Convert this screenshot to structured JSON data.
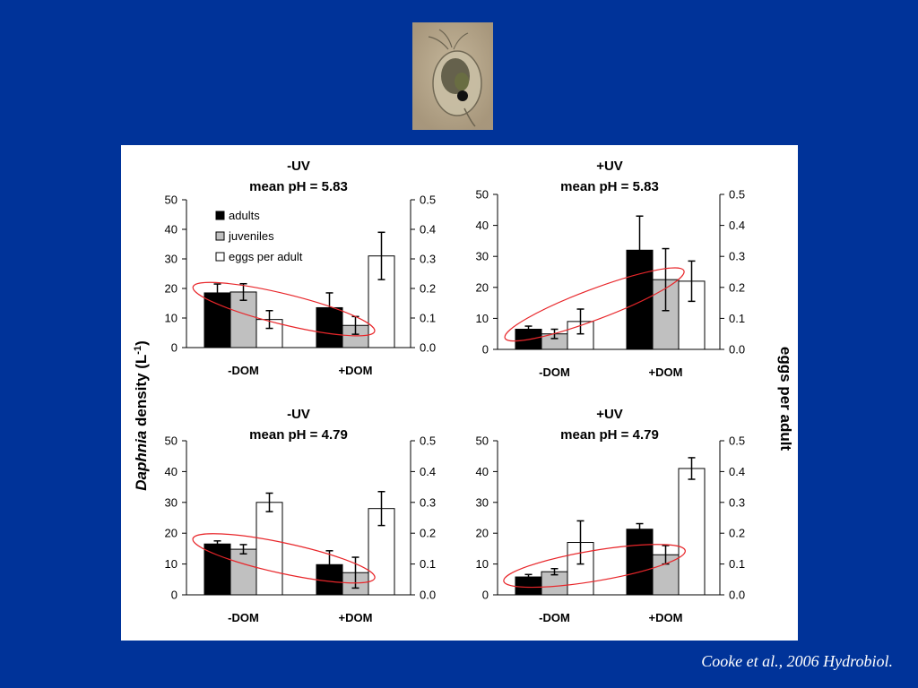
{
  "citation": "Cooke et al., 2006 Hydrobiol.",
  "photo": {
    "subject": "daphnia-photo"
  },
  "colors": {
    "background": "#003399",
    "adults": "#000000",
    "juveniles": "#c0c0c0",
    "eggs": "#ffffff",
    "highlight_ellipse": "#e8262a"
  },
  "shared_axes": {
    "ylabel_italic": "Daphnia",
    "ylabel_rest": " density (L",
    "ylabel_sup": "-1",
    "ylabel_close": ")",
    "y2label": "eggs per adult"
  },
  "chart_data": [
    {
      "type": "bar",
      "title": "-UV",
      "subtitle": "mean pH = 5.83",
      "categories": [
        "-DOM",
        "+DOM"
      ],
      "ylim": [
        0,
        50
      ],
      "y2lim": [
        0,
        0.5
      ],
      "yticks": [
        "0",
        "10",
        "20",
        "30",
        "40",
        "50"
      ],
      "y2ticks": [
        "0.0",
        "0.1",
        "0.2",
        "0.3",
        "0.4",
        "0.5"
      ],
      "legend": [
        "adults",
        "juveniles",
        "eggs per adult"
      ],
      "series": [
        {
          "name": "adults",
          "axis": "left",
          "values": [
            18.5,
            13.5
          ],
          "errors": [
            3,
            5
          ]
        },
        {
          "name": "juveniles",
          "axis": "left",
          "values": [
            18.8,
            7.5
          ],
          "errors": [
            2.8,
            3
          ]
        },
        {
          "name": "eggs per adult",
          "axis": "right",
          "values": [
            0.095,
            0.31
          ],
          "errors": [
            0.03,
            0.08
          ]
        }
      ],
      "highlight": "decreasing"
    },
    {
      "type": "bar",
      "title": "+UV",
      "subtitle": "mean pH = 5.83",
      "categories": [
        "-DOM",
        "+DOM"
      ],
      "ylim": [
        0,
        50
      ],
      "y2lim": [
        0,
        0.5
      ],
      "yticks": [
        "0",
        "10",
        "20",
        "30",
        "40",
        "50"
      ],
      "y2ticks": [
        "0.0",
        "0.1",
        "0.2",
        "0.3",
        "0.4",
        "0.5"
      ],
      "series": [
        {
          "name": "adults",
          "axis": "left",
          "values": [
            6.5,
            32
          ],
          "errors": [
            1,
            11
          ]
        },
        {
          "name": "juveniles",
          "axis": "left",
          "values": [
            5,
            22.5
          ],
          "errors": [
            1.5,
            10
          ]
        },
        {
          "name": "eggs per adult",
          "axis": "right",
          "values": [
            0.09,
            0.22
          ],
          "errors": [
            0.04,
            0.065
          ]
        }
      ],
      "highlight": "increasing"
    },
    {
      "type": "bar",
      "title": "-UV",
      "subtitle": "mean pH = 4.79",
      "categories": [
        "-DOM",
        "+DOM"
      ],
      "ylim": [
        0,
        50
      ],
      "y2lim": [
        0,
        0.5
      ],
      "yticks": [
        "0",
        "10",
        "20",
        "30",
        "40",
        "50"
      ],
      "y2ticks": [
        "0.0",
        "0.1",
        "0.2",
        "0.3",
        "0.4",
        "0.5"
      ],
      "series": [
        {
          "name": "adults",
          "axis": "left",
          "values": [
            16.5,
            9.8
          ],
          "errors": [
            1,
            4.5
          ]
        },
        {
          "name": "juveniles",
          "axis": "left",
          "values": [
            14.8,
            7.2
          ],
          "errors": [
            1.5,
            5
          ]
        },
        {
          "name": "eggs per adult",
          "axis": "right",
          "values": [
            0.3,
            0.28
          ],
          "errors": [
            0.03,
            0.055
          ]
        }
      ],
      "highlight": "decreasing"
    },
    {
      "type": "bar",
      "title": "+UV",
      "subtitle": "mean pH = 4.79",
      "categories": [
        "-DOM",
        "+DOM"
      ],
      "ylim": [
        0,
        50
      ],
      "y2lim": [
        0,
        0.5
      ],
      "yticks": [
        "0",
        "10",
        "20",
        "30",
        "40",
        "50"
      ],
      "y2ticks": [
        "0.0",
        "0.1",
        "0.2",
        "0.3",
        "0.4",
        "0.5"
      ],
      "series": [
        {
          "name": "adults",
          "axis": "left",
          "values": [
            5.8,
            21.3
          ],
          "errors": [
            0.8,
            1.8
          ]
        },
        {
          "name": "juveniles",
          "axis": "left",
          "values": [
            7.5,
            13
          ],
          "errors": [
            1,
            3
          ]
        },
        {
          "name": "eggs per adult",
          "axis": "right",
          "values": [
            0.17,
            0.41
          ],
          "errors": [
            0.07,
            0.035
          ]
        }
      ],
      "highlight": "increasing"
    }
  ]
}
